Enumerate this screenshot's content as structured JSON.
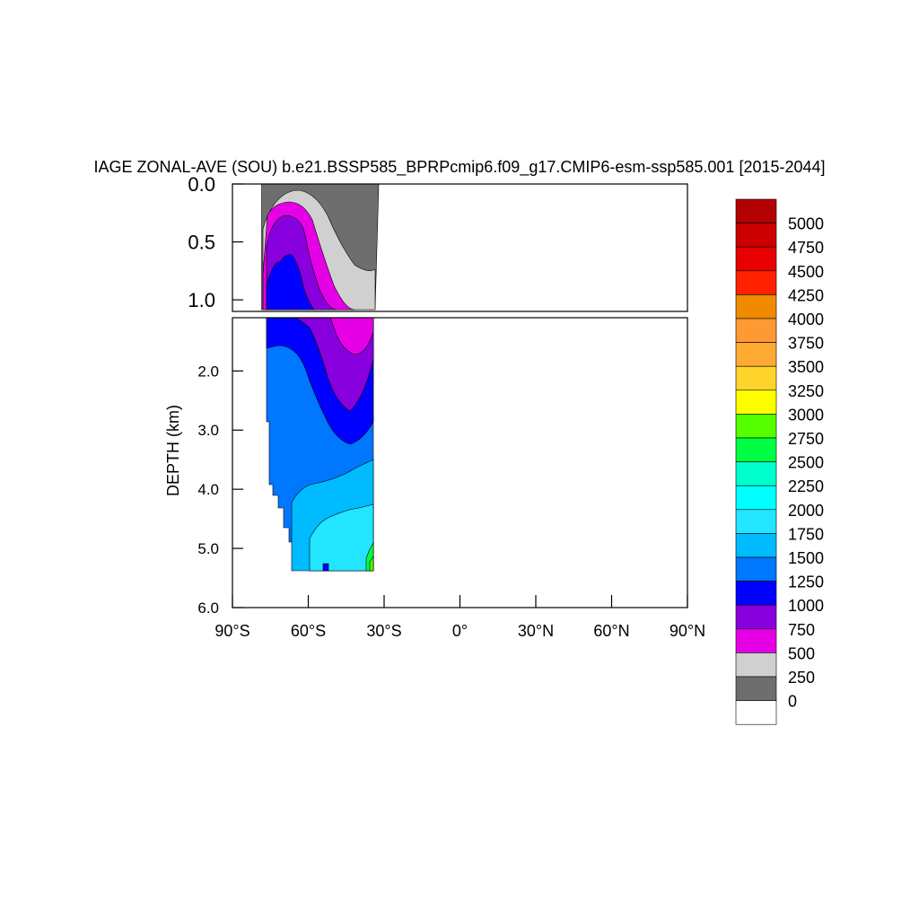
{
  "chart_data": {
    "type": "heatmap",
    "title": "IAGE ZONAL-AVE (SOU) b.e21.BSSP585_BPRPcmip6.f09_g17.CMIP6-esm-ssp585.001 [2015-2044]",
    "ylabel": "DEPTH (km)",
    "xlabel": "",
    "x_ticks": [
      "90°S",
      "60°S",
      "30°S",
      "0°",
      "30°N",
      "60°N",
      "90°N"
    ],
    "x_tick_values": [
      -90,
      -60,
      -30,
      0,
      30,
      60,
      90
    ],
    "y_ticks_upper": [
      "0.0",
      "0.5",
      "1.0"
    ],
    "y_ticks_upper_values": [
      0.0,
      0.5,
      1.0
    ],
    "y_ticks_lower": [
      "2.0",
      "3.0",
      "4.0",
      "5.0",
      "6.0"
    ],
    "y_ticks_lower_values": [
      2.0,
      3.0,
      4.0,
      5.0,
      6.0
    ],
    "xlim": [
      -90,
      90
    ],
    "ylim_upper": [
      0,
      1.1
    ],
    "ylim_lower": [
      1.1,
      6.0
    ],
    "colorbar": {
      "labels": [
        "5000",
        "4750",
        "4500",
        "4250",
        "4000",
        "3750",
        "3500",
        "3250",
        "3000",
        "2750",
        "2500",
        "2250",
        "2000",
        "1750",
        "1500",
        "1250",
        "1000",
        "750",
        "500",
        "250",
        "0"
      ],
      "colors": [
        "#b30000",
        "#cc0000",
        "#e60000",
        "#ff2200",
        "#f08a00",
        "#ff9933",
        "#ffaa33",
        "#ffd42a",
        "#ffff00",
        "#55ff00",
        "#00ff44",
        "#00ffcc",
        "#00ffff",
        "#22e5ff",
        "#00bbff",
        "#0077ff",
        "#0000ff",
        "#8800dd",
        "#e600e6",
        "#d0d0d0",
        "#6e6e6e",
        "#ffffff"
      ]
    },
    "section_colors": {
      "c0": "#6e6e6e",
      "c250": "#d0d0d0",
      "c500": "#e600e6",
      "c750": "#8800dd",
      "c1000": "#0000ff",
      "c1250": "#0077ff",
      "c1500": "#00bbff",
      "c1750": "#22e5ff",
      "c2750": "#00ff44",
      "c3000": "#55ff00"
    }
  }
}
